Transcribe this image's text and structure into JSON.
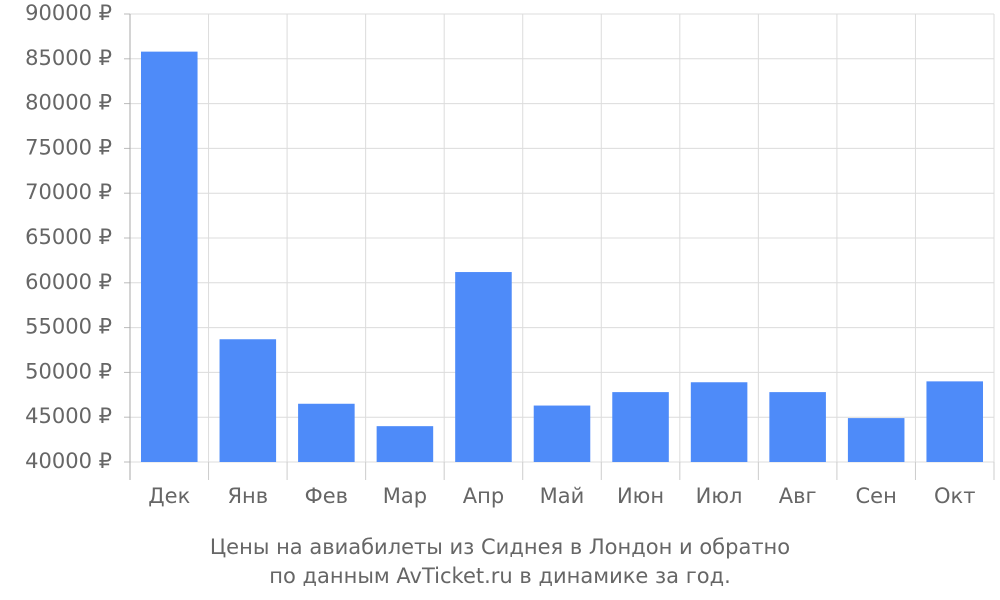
{
  "chart_data": {
    "type": "bar",
    "title": [
      "Цены на авиабилеты из Сиднея в Лондон и обратно",
      "по данным AvTicket.ru в динамике за год."
    ],
    "categories": [
      "Дек",
      "Янв",
      "Фев",
      "Мар",
      "Апр",
      "Май",
      "Июн",
      "Июл",
      "Авг",
      "Сен",
      "Окт"
    ],
    "values": [
      85800,
      53700,
      46500,
      44000,
      61200,
      46300,
      47800,
      48900,
      47800,
      44900,
      49000
    ],
    "color": "#4e8bf9",
    "ylim": [
      40000,
      90000
    ],
    "yticks": [
      {
        "value": 40000,
        "label": "40000 ₽"
      },
      {
        "value": 45000,
        "label": "45000 ₽"
      },
      {
        "value": 50000,
        "label": "50000 ₽"
      },
      {
        "value": 55000,
        "label": "55000 ₽"
      },
      {
        "value": 60000,
        "label": "60000 ₽"
      },
      {
        "value": 65000,
        "label": "65000 ₽"
      },
      {
        "value": 70000,
        "label": "70000 ₽"
      },
      {
        "value": 75000,
        "label": "75000 ₽"
      },
      {
        "value": 80000,
        "label": "80000 ₽"
      },
      {
        "value": 85000,
        "label": "85000 ₽"
      },
      {
        "value": 90000,
        "label": "90000 ₽"
      }
    ],
    "grid": true
  }
}
